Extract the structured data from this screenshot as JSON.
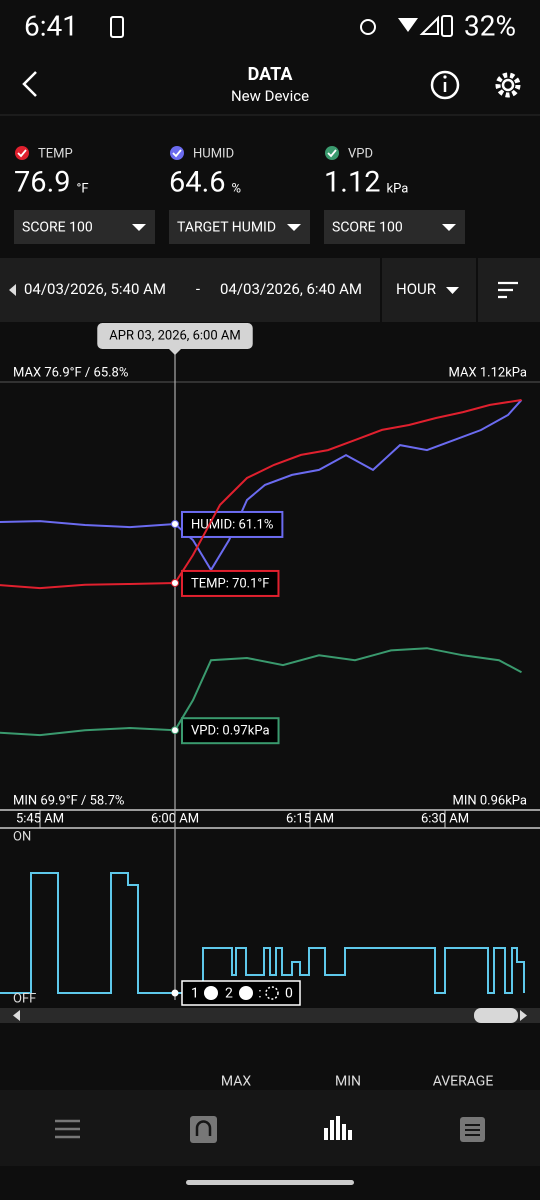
{
  "status_bar": {
    "time": "6:41",
    "battery": "32%"
  },
  "header": {
    "title": "DATA",
    "subtitle": "New Device"
  },
  "metrics": [
    {
      "label": "TEMP",
      "value": "76.9",
      "unit": "°F",
      "dropdown": "SCORE 100",
      "color": "#e0202e"
    },
    {
      "label": "HUMID",
      "value": "64.6",
      "unit": "%",
      "dropdown": "TARGET HUMID",
      "color": "#6b6bf0"
    },
    {
      "label": "VPD",
      "value": "1.12",
      "unit": "kPa",
      "dropdown": "SCORE 100",
      "color": "#3a9a6e"
    }
  ],
  "range": {
    "start": "04/03/2026, 5:40 AM",
    "separator": "-",
    "end": "04/03/2026, 6:40 AM",
    "interval": "HOUR"
  },
  "chart_data": {
    "type": "line",
    "tooltip": "APR 03, 2026, 6:00 AM",
    "max_left": "MAX 76.9°F / 65.8%",
    "max_right": "MAX 1.12kPa",
    "min_left": "MIN 69.9°F / 58.7%",
    "min_right": "MIN 0.96kPa",
    "xlim": [
      0,
      60
    ],
    "xticks": [
      {
        "value": 5,
        "label": "5:45 AM"
      },
      {
        "value": 20,
        "label": "6:00 AM"
      },
      {
        "value": 35,
        "label": "6:15 AM"
      },
      {
        "value": 50,
        "label": "6:30 AM"
      }
    ],
    "series": [
      {
        "callout": "HUMID: 61.1%",
        "color": "#6b6bf0",
        "ylim": [
          50.26,
          66.48
        ],
        "x": [
          0,
          5,
          10,
          15,
          20,
          22,
          24,
          26,
          28,
          30,
          33,
          36,
          39,
          42,
          45,
          48,
          51,
          54,
          57,
          58.5
        ],
        "values": [
          61.17,
          61.21,
          61.06,
          60.98,
          61.1,
          60.49,
          59.36,
          60.49,
          62.01,
          62.58,
          62.96,
          63.15,
          63.71,
          63.15,
          64.09,
          63.9,
          64.28,
          64.66,
          65.23,
          65.8
        ]
      },
      {
        "callout": "TEMP: 70.1°F",
        "color": "#e0202e",
        "ylim": [
          61.66,
          77.57
        ],
        "x": [
          0,
          5,
          10,
          15,
          20,
          22,
          25,
          28,
          31,
          34,
          37,
          40,
          43,
          46,
          49,
          52,
          55,
          58.5
        ],
        "values": [
          70.03,
          69.91,
          70.03,
          70.06,
          70.1,
          71.14,
          73.0,
          74.0,
          74.49,
          74.86,
          75.04,
          75.41,
          75.79,
          75.97,
          76.23,
          76.45,
          76.72,
          76.9
        ]
      },
      {
        "callout": "VPD: 0.97kPa",
        "color": "#3a9a6e",
        "ylim": [
          0.824,
          1.607
        ],
        "x": [
          0,
          5,
          10,
          15,
          20,
          22,
          24,
          28,
          32,
          36,
          40,
          44,
          48,
          52,
          56,
          58.5
        ],
        "values": [
          0.966,
          0.961,
          0.97,
          0.974,
          0.97,
          1.025,
          1.098,
          1.102,
          1.089,
          1.107,
          1.098,
          1.116,
          1.12,
          1.107,
          1.098,
          1.076
        ]
      }
    ]
  },
  "status_chart": {
    "on": "ON",
    "off": "OFF",
    "count_1": "1",
    "count_2": "2",
    "count_3": "0"
  },
  "stats_header": [
    "MAX",
    "MIN",
    "AVERAGE"
  ]
}
